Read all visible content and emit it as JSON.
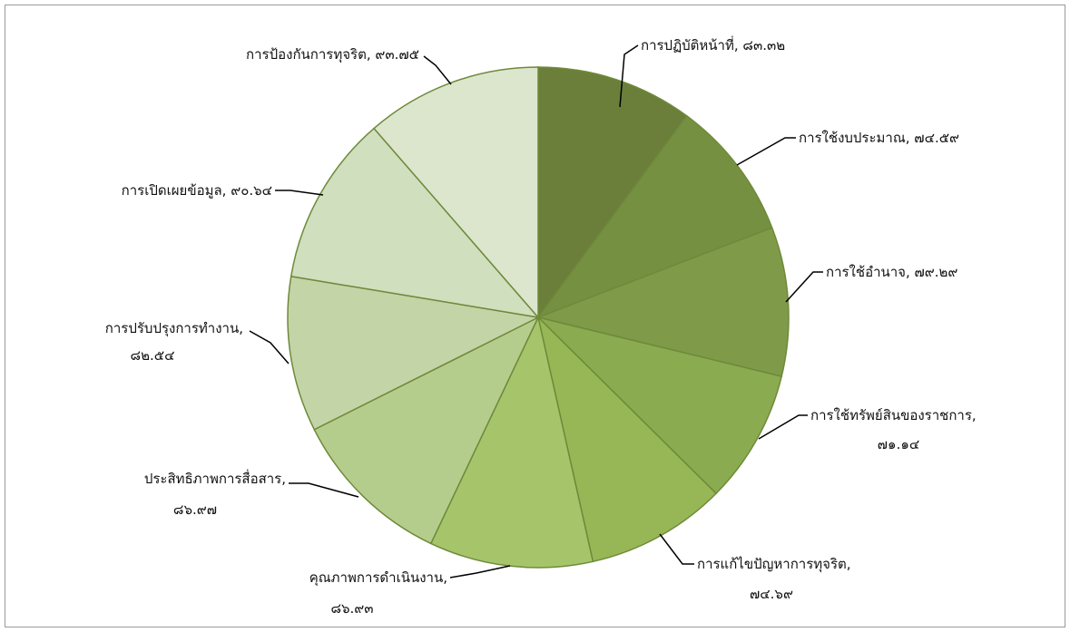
{
  "chart_data": {
    "type": "pie",
    "title": "",
    "legend": "none",
    "start_angle_deg": 0,
    "direction": "clockwise",
    "slices": [
      {
        "label": "การปฏิบัติหน้าที่, ๘๓.๓๒",
        "value": 83.32,
        "color": "#6b7f3b"
      },
      {
        "label": "การใช้งบประมาณ, ๗๔.๕๙",
        "value": 74.59,
        "color": "#769042"
      },
      {
        "label": "การใช้อำนาจ, ๗๙.๒๙",
        "value": 79.29,
        "color": "#7f9a48"
      },
      {
        "label": "การใช้ทรัพย์สินของราชการ, ๗๑.๑๔",
        "value": 71.14,
        "color": "#8aab4f"
      },
      {
        "label": "การแก้ไขปัญหาการทุจริต, ๗๔.๖๙",
        "value": 74.69,
        "color": "#97b757"
      },
      {
        "label": "คุณภาพการดำเนินงาน, ๘๖.๙๓",
        "value": 86.93,
        "color": "#a6c56b"
      },
      {
        "label": "ประสิทธิภาพการสื่อสาร, ๘๖.๙๗",
        "value": 86.97,
        "color": "#b5cd8c"
      },
      {
        "label": "การปรับปรุงการทำงาน, ๘๒.๕๔",
        "value": 82.54,
        "color": "#c3d5a7"
      },
      {
        "label": "การเปิดเผยข้อมูล, ๙๐.๖๔",
        "value": 90.64,
        "color": "#d0dfbe"
      },
      {
        "label": "การป้องกันการทุจริต, ๙๓.๗๕",
        "value": 93.75,
        "color": "#dce6cd"
      }
    ]
  },
  "colors": {
    "slice_border": "#6e8a3a",
    "leader_line": "#000000",
    "frame": "#9a9a9a"
  }
}
